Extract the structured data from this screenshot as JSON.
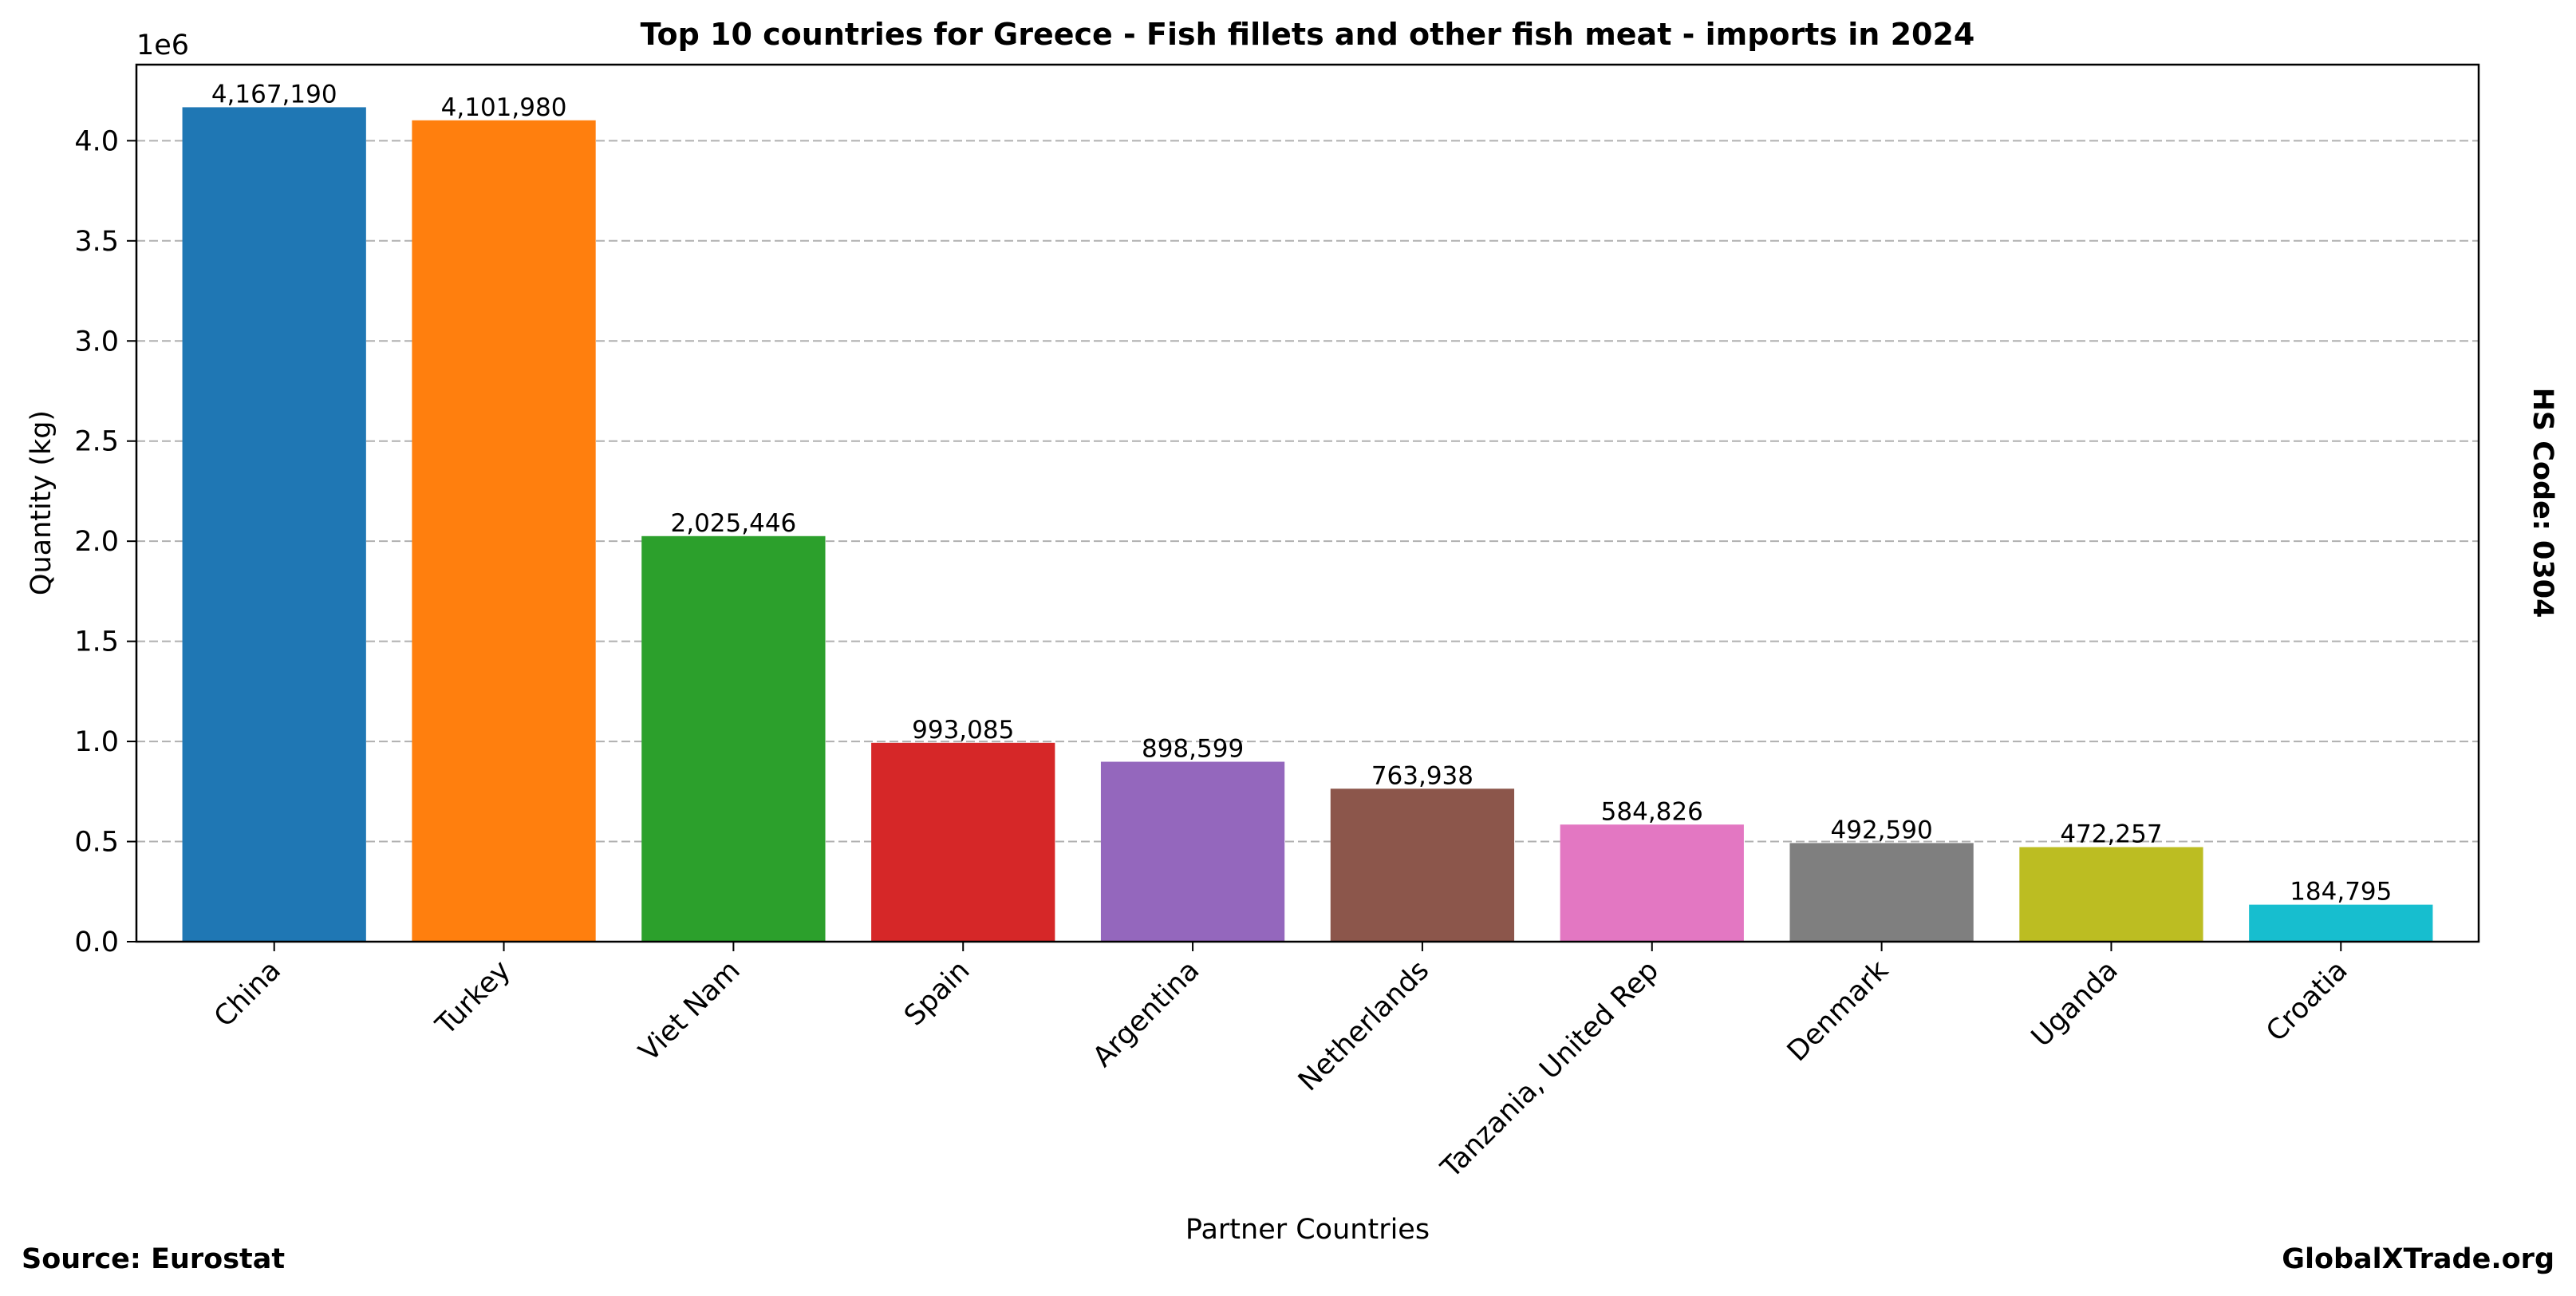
{
  "chart_data": {
    "type": "bar",
    "title": "Top 10 countries for Greece - Fish fillets and other fish meat - imports in 2024",
    "xlabel": "Partner Countries",
    "ylabel": "Quantity (kg)",
    "y_offset_label": "1e6",
    "right_label": "HS Code: 0304",
    "categories": [
      "China",
      "Turkey",
      "Viet Nam",
      "Spain",
      "Argentina",
      "Netherlands",
      "Tanzania, United Rep",
      "Denmark",
      "Uganda",
      "Croatia"
    ],
    "values": [
      4167190,
      4101980,
      2025446,
      993085,
      898599,
      763938,
      584826,
      492590,
      472257,
      184795
    ],
    "value_labels": [
      "4,167,190",
      "4,101,980",
      "2,025,446",
      "993,085",
      "898,599",
      "763,938",
      "584,826",
      "492,590",
      "472,257",
      "184,795"
    ],
    "colors": [
      "#1f77b4",
      "#ff7f0e",
      "#2ca02c",
      "#d62728",
      "#9467bd",
      "#8c564b",
      "#e377c2",
      "#7f7f7f",
      "#bcbd22",
      "#17becf"
    ],
    "ylim": [
      0,
      4380000
    ],
    "yticks": [
      0,
      0.5,
      1.0,
      1.5,
      2.0,
      2.5,
      3.0,
      3.5,
      4.0
    ],
    "ytick_labels": [
      "0.0",
      "0.5",
      "1.0",
      "1.5",
      "2.0",
      "2.5",
      "3.0",
      "3.5",
      "4.0"
    ],
    "ytick_scale": 1000000,
    "grid": "y-dashed",
    "legend": "none"
  },
  "footer": {
    "source": "Source: Eurostat",
    "brand": "GlobalXTrade.org"
  }
}
